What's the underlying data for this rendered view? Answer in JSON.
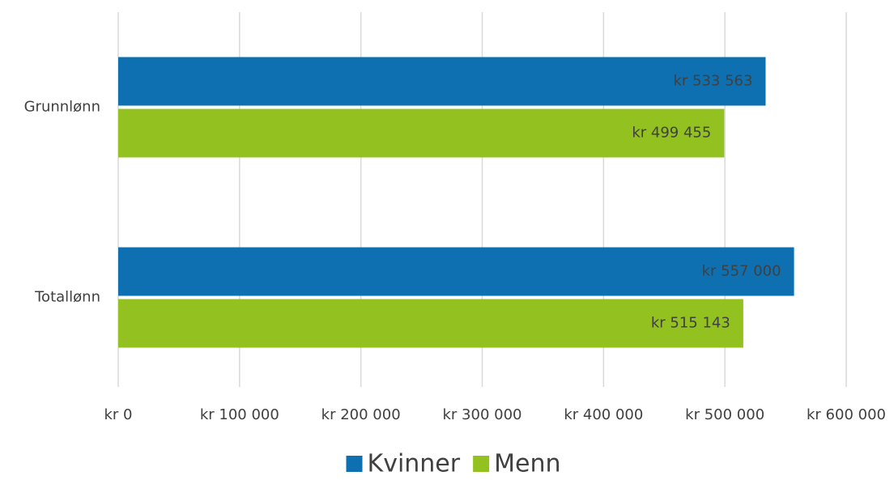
{
  "chart_data": {
    "type": "bar",
    "orientation": "horizontal",
    "categories": [
      "Grunnlønn",
      "Totallønn"
    ],
    "series": [
      {
        "name": "Kvinner",
        "color": "#0e70b0",
        "values": [
          533563,
          557000
        ],
        "value_labels": [
          "kr 533 563",
          "kr 557 000"
        ]
      },
      {
        "name": "Menn",
        "color": "#93c11f",
        "values": [
          499455,
          515143
        ],
        "value_labels": [
          "kr 499 455",
          "kr 515 143"
        ]
      }
    ],
    "xlim": [
      0,
      600000
    ],
    "xticks": [
      {
        "value": 0,
        "label": "kr 0"
      },
      {
        "value": 100000,
        "label": "kr 100 000"
      },
      {
        "value": 200000,
        "label": "kr 200 000"
      },
      {
        "value": 300000,
        "label": "kr 300 000"
      },
      {
        "value": 400000,
        "label": "kr 400 000"
      },
      {
        "value": 500000,
        "label": "kr 500 000"
      },
      {
        "value": 600000,
        "label": "kr 600 000"
      }
    ],
    "grid": true,
    "legend": "bottom"
  }
}
